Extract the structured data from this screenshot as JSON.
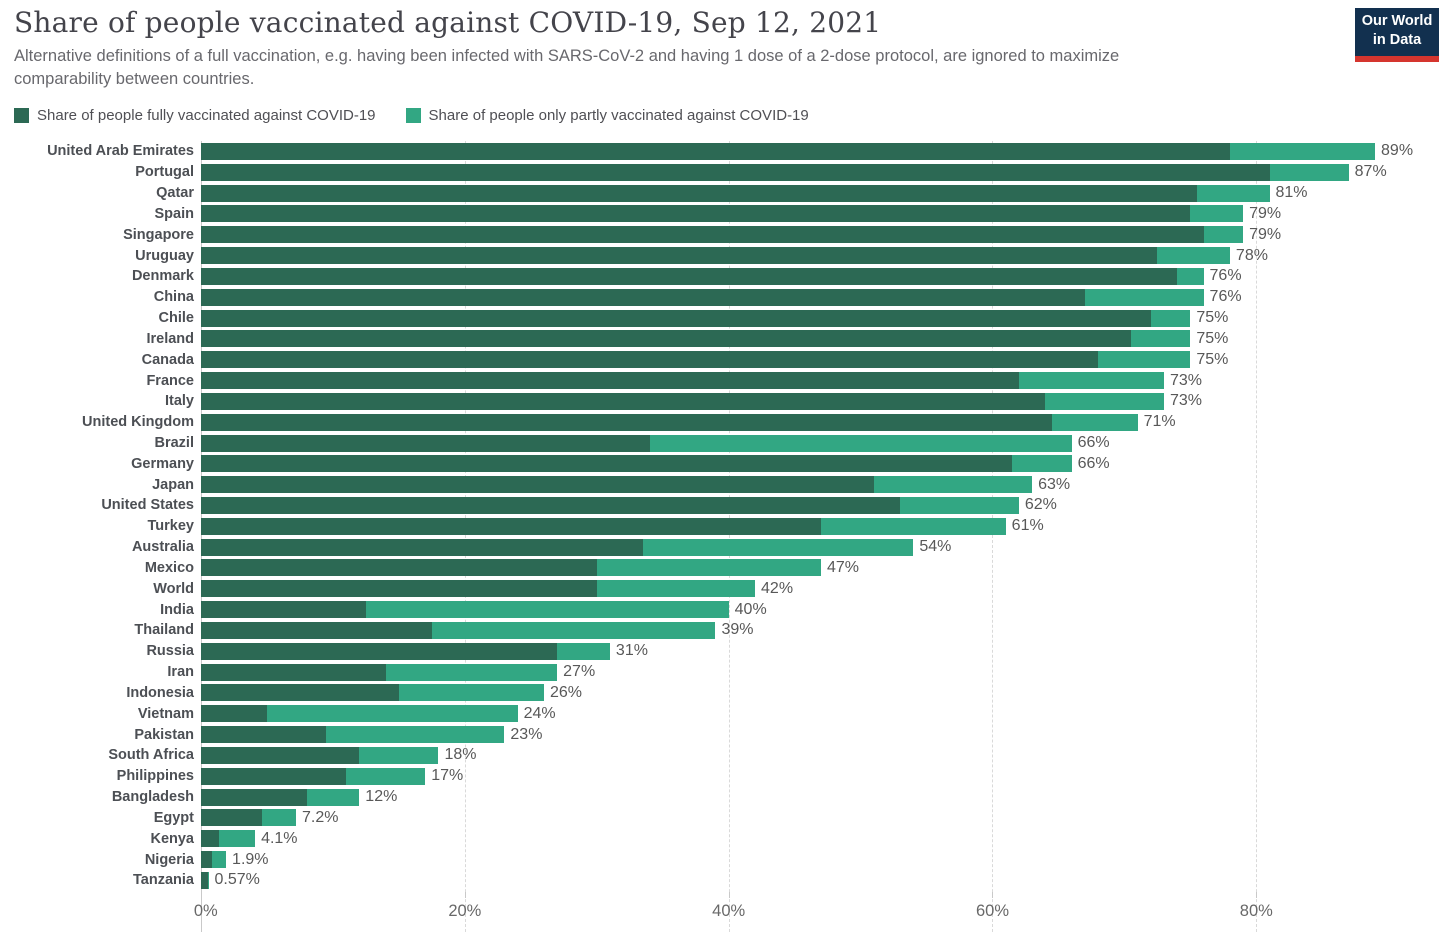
{
  "header": {
    "title": "Share of people vaccinated against COVID-19, Sep 12, 2021",
    "subtitle_lines": [
      "Alternative definitions of a full vaccination, e.g. having been infected with SARS-CoV-2 and having 1 dose of a 2-dose protocol, are ignored to maximize",
      "comparability between countries."
    ],
    "logo": {
      "line1": "Our World",
      "line2": "in Data"
    }
  },
  "legend": [
    {
      "key": "fully",
      "label": "Share of people fully vaccinated against COVID-19",
      "color": "#2c6954"
    },
    {
      "key": "partly",
      "label": "Share of people only partly vaccinated against COVID-19",
      "color": "#32a783"
    }
  ],
  "colors": {
    "fully_vaccinated": "#2c6954",
    "partly_vaccinated": "#32a783",
    "logo_background": "#12304f",
    "logo_stripe": "#d5352e",
    "gridline": "#d9d9d9",
    "axis_text": "#686868"
  },
  "chart_data": {
    "type": "bar",
    "orientation": "horizontal",
    "stacked": true,
    "title": "Share of people vaccinated against COVID-19, Sep 12, 2021",
    "xlabel": "",
    "ylabel": "",
    "xlim": [
      0,
      94
    ],
    "grid": "vertical-dashed",
    "legend_position": "top",
    "series_names": [
      "Share of people fully vaccinated against COVID-19",
      "Share of people only partly vaccinated against COVID-19"
    ],
    "x_ticks": [
      {
        "value": 0,
        "label": "0%"
      },
      {
        "value": 20,
        "label": "20%"
      },
      {
        "value": 40,
        "label": "40%"
      },
      {
        "value": 60,
        "label": "60%"
      },
      {
        "value": 80,
        "label": "80%"
      }
    ],
    "rows": [
      {
        "country": "United Arab Emirates",
        "fully": 78,
        "total": 89,
        "label": "89%"
      },
      {
        "country": "Portugal",
        "fully": 81,
        "total": 87,
        "label": "87%"
      },
      {
        "country": "Qatar",
        "fully": 75.5,
        "total": 81,
        "label": "81%"
      },
      {
        "country": "Spain",
        "fully": 75,
        "total": 79,
        "label": "79%"
      },
      {
        "country": "Singapore",
        "fully": 76,
        "total": 79,
        "label": "79%"
      },
      {
        "country": "Uruguay",
        "fully": 72.5,
        "total": 78,
        "label": "78%"
      },
      {
        "country": "Denmark",
        "fully": 74,
        "total": 76,
        "label": "76%"
      },
      {
        "country": "China",
        "fully": 67,
        "total": 76,
        "label": "76%"
      },
      {
        "country": "Chile",
        "fully": 72,
        "total": 75,
        "label": "75%"
      },
      {
        "country": "Ireland",
        "fully": 70.5,
        "total": 75,
        "label": "75%"
      },
      {
        "country": "Canada",
        "fully": 68,
        "total": 75,
        "label": "75%"
      },
      {
        "country": "France",
        "fully": 62,
        "total": 73,
        "label": "73%"
      },
      {
        "country": "Italy",
        "fully": 64,
        "total": 73,
        "label": "73%"
      },
      {
        "country": "United Kingdom",
        "fully": 64.5,
        "total": 71,
        "label": "71%"
      },
      {
        "country": "Brazil",
        "fully": 34,
        "total": 66,
        "label": "66%"
      },
      {
        "country": "Germany",
        "fully": 61.5,
        "total": 66,
        "label": "66%"
      },
      {
        "country": "Japan",
        "fully": 51,
        "total": 63,
        "label": "63%"
      },
      {
        "country": "United States",
        "fully": 53,
        "total": 62,
        "label": "62%"
      },
      {
        "country": "Turkey",
        "fully": 47,
        "total": 61,
        "label": "61%"
      },
      {
        "country": "Australia",
        "fully": 33.5,
        "total": 54,
        "label": "54%"
      },
      {
        "country": "Mexico",
        "fully": 30,
        "total": 47,
        "label": "47%"
      },
      {
        "country": "World",
        "fully": 30,
        "total": 42,
        "label": "42%"
      },
      {
        "country": "India",
        "fully": 12.5,
        "total": 40,
        "label": "40%"
      },
      {
        "country": "Thailand",
        "fully": 17.5,
        "total": 39,
        "label": "39%"
      },
      {
        "country": "Russia",
        "fully": 27,
        "total": 31,
        "label": "31%"
      },
      {
        "country": "Iran",
        "fully": 14,
        "total": 27,
        "label": "27%"
      },
      {
        "country": "Indonesia",
        "fully": 15,
        "total": 26,
        "label": "26%"
      },
      {
        "country": "Vietnam",
        "fully": 5,
        "total": 24,
        "label": "24%"
      },
      {
        "country": "Pakistan",
        "fully": 9.5,
        "total": 23,
        "label": "23%"
      },
      {
        "country": "South Africa",
        "fully": 12,
        "total": 18,
        "label": "18%"
      },
      {
        "country": "Philippines",
        "fully": 11,
        "total": 17,
        "label": "17%"
      },
      {
        "country": "Bangladesh",
        "fully": 8,
        "total": 12,
        "label": "12%"
      },
      {
        "country": "Egypt",
        "fully": 4.6,
        "total": 7.2,
        "label": "7.2%"
      },
      {
        "country": "Kenya",
        "fully": 1.4,
        "total": 4.1,
        "label": "4.1%"
      },
      {
        "country": "Nigeria",
        "fully": 0.8,
        "total": 1.9,
        "label": "1.9%"
      },
      {
        "country": "Tanzania",
        "fully": 0.5,
        "total": 0.57,
        "label": "0.57%"
      }
    ]
  }
}
